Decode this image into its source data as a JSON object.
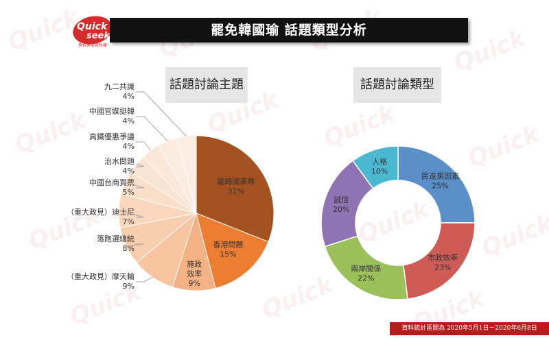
{
  "logo": {
    "line1": "Quick",
    "line2": "seek",
    "tagline": "快析輿情資料庫"
  },
  "title": "罷免韓國瑜 話題類型分析",
  "footer": "資料統計區間為 2020年5月1日－2020年6月8日",
  "colors": {
    "title_bg": "#111111",
    "footer_bg": "#b71c1c",
    "header_bg": "#e6e6e6"
  },
  "chart_data": [
    {
      "type": "pie",
      "title": "話題討論主題",
      "slices": [
        {
          "name": "罷韓國家隊",
          "value": 31,
          "color": "#a4521f"
        },
        {
          "name": "香港問題",
          "value": 15,
          "color": "#ed7d31"
        },
        {
          "name": "施政效率",
          "value": 9,
          "color": "#f4b183"
        },
        {
          "name": "（重大政見）摩天輪",
          "value": 9,
          "color": "#f6c5a0"
        },
        {
          "name": "落跑選總統",
          "value": 8,
          "color": "#f8cfae"
        },
        {
          "name": "（重大政見）迪士尼",
          "value": 7,
          "color": "#f9d7bd"
        },
        {
          "name": "中國台商買票",
          "value": 5,
          "color": "#fadfc9"
        },
        {
          "name": "治水問題",
          "value": 4,
          "color": "#fbe4d3"
        },
        {
          "name": "高鐵優惠爭議",
          "value": 4,
          "color": "#fce8da"
        },
        {
          "name": "中國官媒挺韓",
          "value": 4,
          "color": "#fcebdf"
        },
        {
          "name": "九二共識",
          "value": 4,
          "color": "#fdeee4"
        }
      ]
    },
    {
      "type": "pie",
      "subtype": "donut",
      "title": "話題討論類型",
      "slices": [
        {
          "name": "民進黨因素",
          "value": 25,
          "color": "#5b8fc9"
        },
        {
          "name": "市政效率",
          "value": 23,
          "color": "#cf5b57"
        },
        {
          "name": "兩岸關係",
          "value": 22,
          "color": "#9bc05a"
        },
        {
          "name": "誠信",
          "value": 20,
          "color": "#8e74b3"
        },
        {
          "name": "人格",
          "value": 10,
          "color": "#4bb8d2"
        }
      ]
    }
  ]
}
